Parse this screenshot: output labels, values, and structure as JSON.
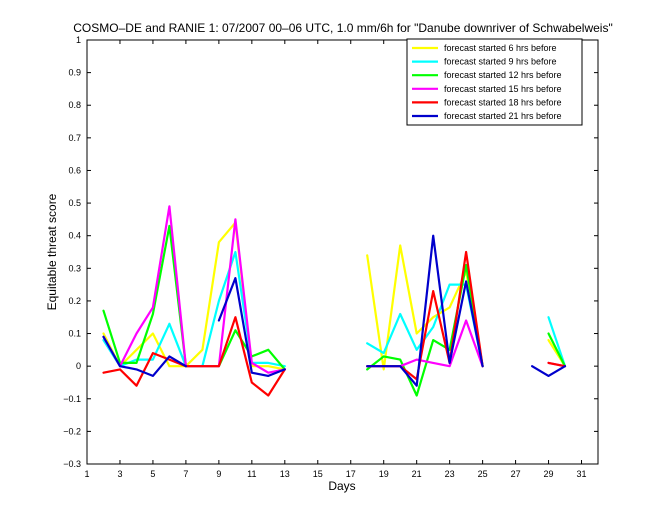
{
  "chart_data": {
    "type": "line",
    "title": "COSMO–DE and RANIE 1: 07/2007 00–06 UTC, 1.0 mm/6h for \"Danube downriver of Schwabelweis\"",
    "xlabel": "Days",
    "ylabel": "Equitable threat score",
    "xlim": [
      1,
      32
    ],
    "ylim": [
      -0.3,
      1
    ],
    "xticks": [
      "1",
      "3",
      "5",
      "7",
      "9",
      "11",
      "13",
      "15",
      "17",
      "19",
      "21",
      "23",
      "25",
      "27",
      "29",
      "31"
    ],
    "yticks": [
      "−0.3",
      "−0.2",
      "−0.1",
      "0",
      "0.1",
      "0.2",
      "0.3",
      "0.4",
      "0.5",
      "0.6",
      "0.7",
      "0.8",
      "0.9",
      "1"
    ],
    "ytick_values": [
      -0.3,
      -0.2,
      -0.1,
      0,
      0.1,
      0.2,
      0.3,
      0.4,
      0.5,
      0.6,
      0.7,
      0.8,
      0.9,
      1
    ],
    "legend_position": "top-right",
    "grid": false,
    "x": [
      1,
      2,
      3,
      4,
      5,
      6,
      7,
      8,
      9,
      10,
      11,
      12,
      13,
      14,
      15,
      16,
      17,
      18,
      19,
      20,
      21,
      22,
      23,
      24,
      25,
      26,
      27,
      28,
      29,
      30,
      31,
      32
    ],
    "series": [
      {
        "name": "forecast started 6 hrs before",
        "color": "#ffff00",
        "values": [
          null,
          0.1,
          0.0,
          0.05,
          0.1,
          0.0,
          0.0,
          0.05,
          0.38,
          0.44,
          0.0,
          0.0,
          -0.01,
          null,
          null,
          null,
          null,
          0.34,
          -0.01,
          0.37,
          0.1,
          0.15,
          0.18,
          0.29,
          0.0,
          null,
          null,
          null,
          0.08,
          0.0,
          null,
          null
        ]
      },
      {
        "name": "forecast started 9 hrs before",
        "color": "#00ffff",
        "values": [
          null,
          0.08,
          0.0,
          0.02,
          0.02,
          0.13,
          0.0,
          0.0,
          0.2,
          0.35,
          0.01,
          0.01,
          0.0,
          null,
          null,
          null,
          null,
          0.07,
          0.04,
          0.16,
          0.05,
          0.12,
          0.25,
          0.25,
          0.0,
          null,
          null,
          null,
          0.15,
          0.0,
          null,
          null
        ]
      },
      {
        "name": "forecast started 12 hrs before",
        "color": "#00ff00",
        "values": [
          null,
          0.17,
          0.01,
          0.01,
          0.16,
          0.43,
          0.0,
          0.0,
          0.0,
          0.11,
          0.03,
          0.05,
          -0.01,
          null,
          null,
          null,
          null,
          -0.01,
          0.03,
          0.02,
          -0.09,
          0.08,
          0.05,
          0.31,
          0.0,
          null,
          null,
          null,
          0.1,
          0.0,
          null,
          null
        ]
      },
      {
        "name": "forecast started 15 hrs before",
        "color": "#ff00ff",
        "values": [
          null,
          0.09,
          0.0,
          0.1,
          0.18,
          0.49,
          0.0,
          0.0,
          0.0,
          0.45,
          0.01,
          -0.02,
          -0.01,
          null,
          null,
          null,
          null,
          0.0,
          0.0,
          0.0,
          0.02,
          0.01,
          0.0,
          0.14,
          0.0,
          null,
          null,
          null,
          0.01,
          0.0,
          null,
          null
        ]
      },
      {
        "name": "forecast started 18 hrs before",
        "color": "#ff0000",
        "values": [
          null,
          -0.02,
          -0.01,
          -0.06,
          0.04,
          0.02,
          0.0,
          0.0,
          0.0,
          0.15,
          -0.05,
          -0.09,
          -0.01,
          null,
          null,
          null,
          null,
          0.0,
          0.0,
          0.0,
          -0.04,
          0.23,
          0.01,
          0.35,
          0.0,
          null,
          null,
          null,
          0.01,
          0.0,
          null,
          null
        ]
      },
      {
        "name": "forecast started 21 hrs before",
        "color": "#0000cc",
        "values": [
          null,
          0.09,
          0.0,
          -0.01,
          -0.03,
          0.03,
          0.0,
          null,
          0.14,
          0.27,
          -0.02,
          -0.03,
          -0.01,
          null,
          null,
          null,
          null,
          0.0,
          0.0,
          0.0,
          -0.06,
          0.4,
          0.01,
          0.26,
          0.0,
          null,
          null,
          0.0,
          -0.03,
          0.0,
          null,
          null
        ]
      }
    ]
  }
}
